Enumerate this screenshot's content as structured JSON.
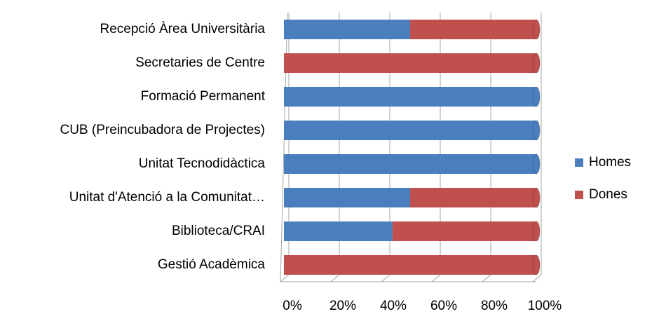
{
  "chart_data": {
    "type": "bar",
    "orientation": "horizontal",
    "stacked": true,
    "categories": [
      "Recepció Àrea Universitària",
      "Secretaries de Centre",
      "Formació Permanent",
      "CUB (Preincubadora de Projectes)",
      "Unitat Tecnodidàctica",
      "Unitat d'Atenció a la Comunitat…",
      "Biblioteca/CRAI",
      "Gestió Acadèmica"
    ],
    "series": [
      {
        "name": "Homes",
        "color": "#4a7ebf",
        "values": [
          50,
          0,
          100,
          100,
          100,
          50,
          43,
          0
        ]
      },
      {
        "name": "Dones",
        "color": "#c0504d",
        "values": [
          50,
          100,
          0,
          0,
          0,
          50,
          57,
          100
        ]
      }
    ],
    "xlim": [
      0,
      100
    ],
    "xticks": [
      {
        "value": 0,
        "label": "0%"
      },
      {
        "value": 20,
        "label": "20%"
      },
      {
        "value": 40,
        "label": "40%"
      },
      {
        "value": 60,
        "label": "60%"
      },
      {
        "value": 80,
        "label": "80%"
      },
      {
        "value": 100,
        "label": "100%"
      }
    ],
    "grid": true,
    "legend": "right"
  }
}
